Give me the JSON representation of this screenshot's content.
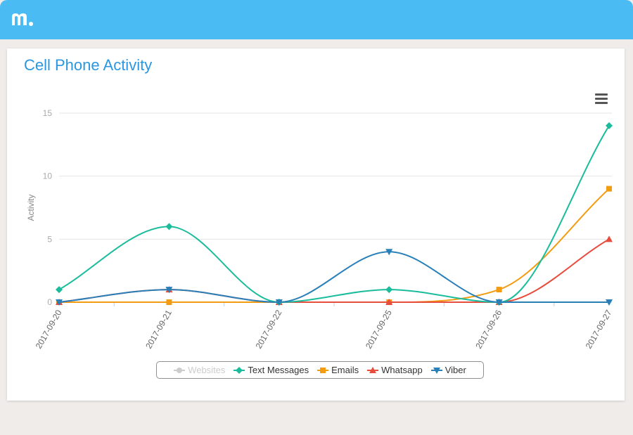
{
  "app": {
    "brand_color": "#4bbcf3",
    "logo_icon": "mspy-logo-icon"
  },
  "card": {
    "title": "Cell Phone Activity",
    "menu_icon": "hamburger-menu-icon"
  },
  "chart_data": {
    "type": "line",
    "smoothing": "spline",
    "categories": [
      "2017-09-20",
      "2017-09-21",
      "2017-09-22",
      "2017-09-25",
      "2017-09-26",
      "2017-09-27"
    ],
    "ylabel": "Activity",
    "yticks": [
      0,
      5,
      10,
      15
    ],
    "ylim": [
      0,
      15
    ],
    "grid": "horizontal",
    "legend_position": "bottom-center",
    "series": [
      {
        "name": "Websites",
        "values": [
          0,
          0,
          0,
          0,
          0,
          0
        ],
        "color": "#cccccc",
        "marker": "circle",
        "visible": false
      },
      {
        "name": "Text Messages",
        "values": [
          1,
          6,
          0,
          1,
          0,
          14
        ],
        "color": "#1abc9c",
        "marker": "diamond",
        "visible": true
      },
      {
        "name": "Emails",
        "values": [
          0,
          0,
          0,
          0,
          1,
          9
        ],
        "color": "#f39c12",
        "marker": "square",
        "visible": true
      },
      {
        "name": "Whatsapp",
        "values": [
          0,
          1,
          0,
          0,
          0,
          5
        ],
        "color": "#e74c3c",
        "marker": "triangle",
        "visible": true
      },
      {
        "name": "Viber",
        "values": [
          0,
          1,
          0,
          4,
          0,
          0
        ],
        "color": "#2980b9",
        "marker": "triangle-down",
        "visible": true
      }
    ]
  }
}
